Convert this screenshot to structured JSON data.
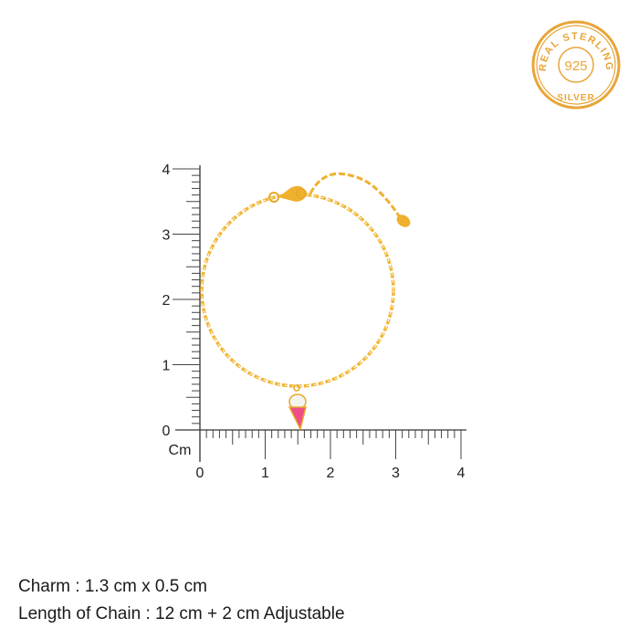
{
  "badge": {
    "top_text": "REAL STERLING",
    "center_text": "925",
    "bottom_text": "SILVER",
    "color": "#e8a53a"
  },
  "ruler": {
    "unit_label": "Cm",
    "x_ticks": [
      "0",
      "1",
      "2",
      "3",
      "4"
    ],
    "y_ticks": [
      "0",
      "1",
      "2",
      "3",
      "4"
    ],
    "range_cm": [
      0,
      4
    ],
    "minor_step_cm": 0.1
  },
  "product": {
    "chain_color": "#f2b531",
    "charm_enamel_color": "#ee4f86"
  },
  "specs": {
    "charm": "Charm : 1.3 cm x 0.5 cm",
    "chain_length": "Length of Chain : 12 cm + 2 cm Adjustable"
  }
}
